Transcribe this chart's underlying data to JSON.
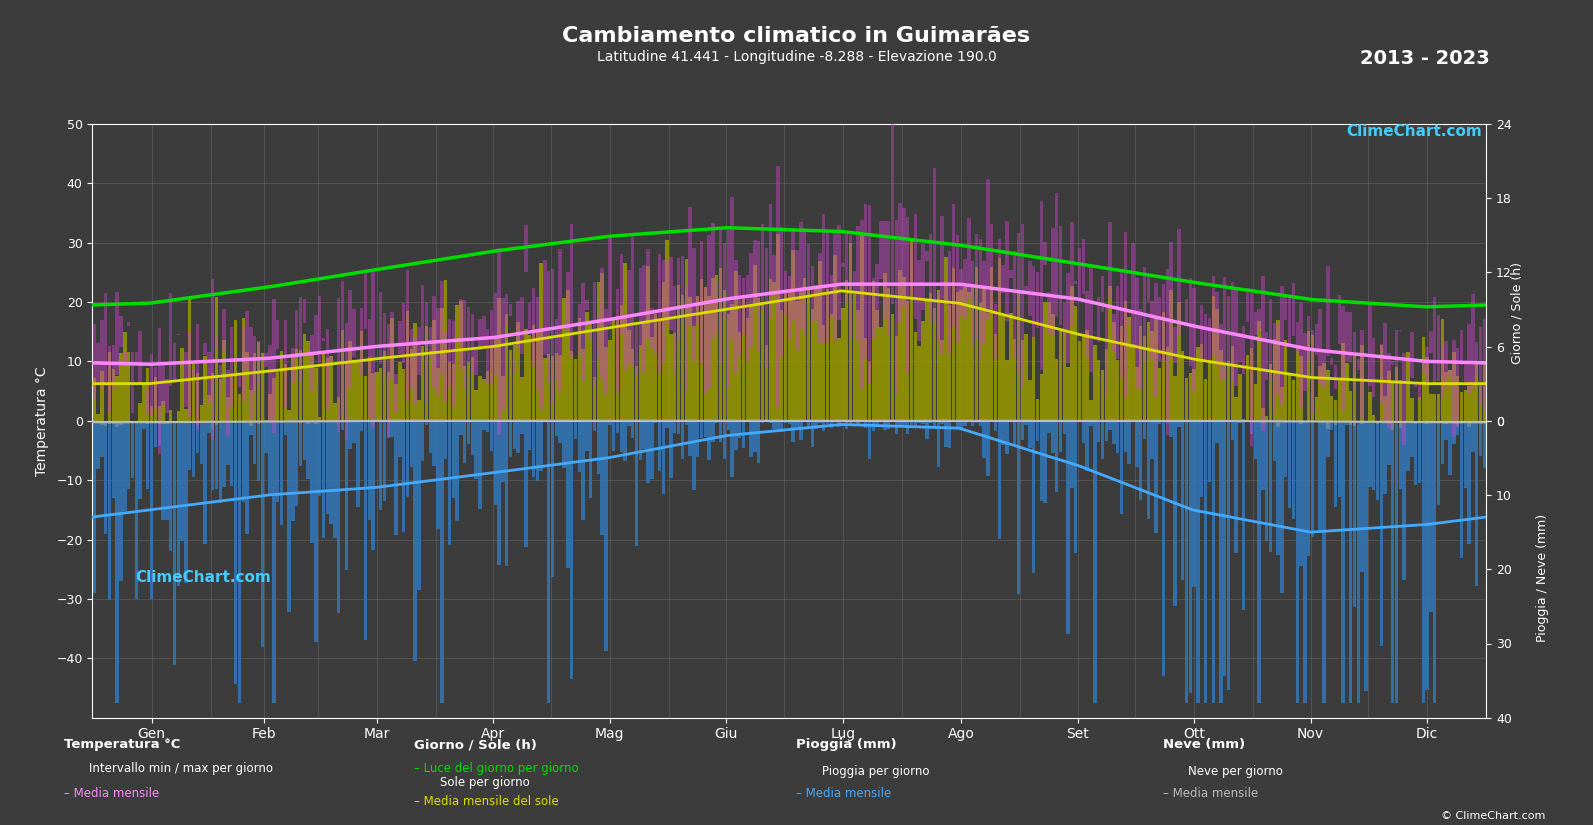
{
  "title": "Cambiamento climatico in Guimarães",
  "subtitle": "Latitudine 41.441 - Longitudine -8.288 - Elevazione 190.0",
  "year_range": "2013 - 2023",
  "background_color": "#3c3c3c",
  "plot_bg_color": "#3c3c3c",
  "months": [
    "Gen",
    "Feb",
    "Mar",
    "Apr",
    "Mag",
    "Giu",
    "Lug",
    "Ago",
    "Set",
    "Ott",
    "Nov",
    "Dic"
  ],
  "temp_ylim": [
    -50,
    50
  ],
  "temp_mean_monthly": [
    9.5,
    10.5,
    12.5,
    14.0,
    17.0,
    20.5,
    23.0,
    23.0,
    20.5,
    16.0,
    12.0,
    10.0
  ],
  "temp_max_monthly": [
    14.0,
    15.0,
    17.5,
    19.5,
    23.5,
    28.0,
    31.0,
    31.0,
    27.0,
    21.0,
    16.0,
    13.5
  ],
  "temp_min_monthly": [
    5.0,
    5.5,
    7.5,
    9.0,
    11.5,
    14.0,
    15.5,
    15.5,
    13.5,
    10.5,
    7.5,
    6.0
  ],
  "daylight_monthly": [
    9.5,
    10.8,
    12.2,
    13.7,
    14.9,
    15.6,
    15.3,
    14.2,
    12.7,
    11.2,
    9.8,
    9.2
  ],
  "sunshine_monthly": [
    3.0,
    4.0,
    5.0,
    6.0,
    7.5,
    9.0,
    10.5,
    9.5,
    7.0,
    5.0,
    3.5,
    3.0
  ],
  "rain_mm_monthly": [
    12.0,
    10.0,
    9.0,
    7.0,
    5.0,
    2.0,
    0.5,
    1.0,
    6.0,
    12.0,
    15.0,
    14.0
  ],
  "snow_mm_monthly": [
    0.2,
    0.1,
    0.0,
    0.0,
    0.0,
    0.0,
    0.0,
    0.0,
    0.0,
    0.0,
    0.1,
    0.2
  ],
  "grid_color": "#888888",
  "text_color": "#ffffff",
  "temp_bar_color": "#cc44cc",
  "sun_bar_color": "#999900",
  "green_line_color": "#00dd00",
  "yellow_line_color": "#dddd00",
  "pink_line_color": "#ff88ff",
  "rain_bar_color": "#3377bb",
  "rain_line_color": "#44aaff",
  "snow_bar_color": "#999999",
  "snow_line_color": "#bbbbbb",
  "month_edges": [
    0,
    31,
    59,
    90,
    120,
    151,
    181,
    212,
    243,
    273,
    304,
    334,
    365
  ],
  "months_x": [
    15,
    46,
    74,
    105,
    135,
    166,
    196,
    227,
    258,
    288,
    319,
    349
  ]
}
